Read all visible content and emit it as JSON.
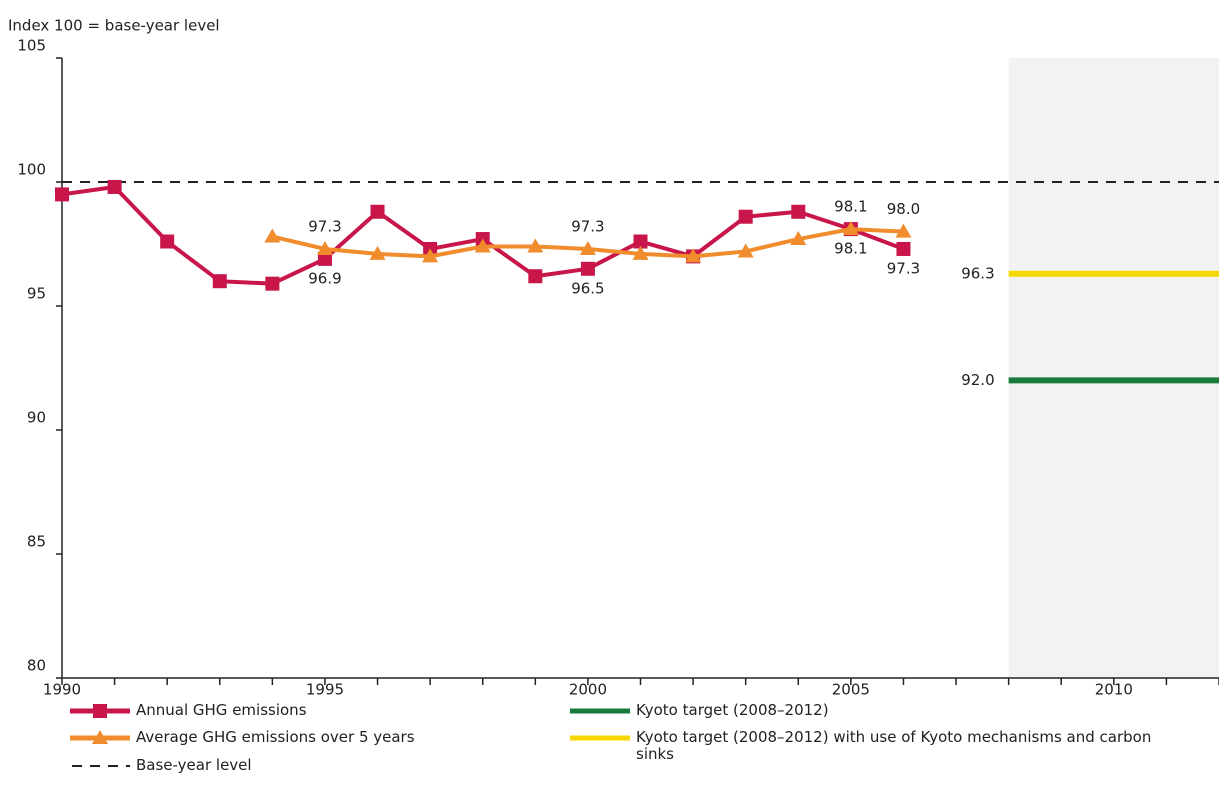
{
  "chart_data": {
    "type": "line",
    "y_label": "Index 100 = base-year level",
    "x": [
      1990,
      1991,
      1992,
      1993,
      1994,
      1995,
      1996,
      1997,
      1998,
      1999,
      2000,
      2001,
      2002,
      2003,
      2004,
      2005,
      2006
    ],
    "series": [
      {
        "name": "Annual GHG emissions",
        "color": "#c8164a",
        "marker": "square",
        "values": [
          99.5,
          99.8,
          97.6,
          96.0,
          95.9,
          96.9,
          98.8,
          97.3,
          97.7,
          96.2,
          96.5,
          97.6,
          97.0,
          98.6,
          98.8,
          98.1,
          97.3
        ],
        "value_labels": [
          null,
          null,
          null,
          null,
          null,
          "96.9",
          null,
          null,
          null,
          null,
          "96.5",
          null,
          null,
          null,
          null,
          "98.1",
          "97.3"
        ],
        "label_position": "below"
      },
      {
        "name": "Average GHG emissions over 5 years",
        "color": "#f08c2c",
        "marker": "triangle",
        "values": [
          null,
          null,
          null,
          null,
          97.8,
          97.3,
          97.1,
          97.0,
          97.4,
          97.4,
          97.3,
          97.1,
          97.0,
          97.2,
          97.7,
          98.1,
          98.0
        ],
        "value_labels": [
          null,
          null,
          null,
          null,
          null,
          "97.3",
          null,
          null,
          null,
          null,
          "97.3",
          null,
          null,
          null,
          null,
          "98.1",
          "98.0"
        ],
        "label_position": "above"
      }
    ],
    "reference_line": {
      "name": "Base-year level",
      "value": 100,
      "color": "#222222",
      "style": "dashed"
    },
    "targets": [
      {
        "name": "Kyoto target (2008–2012)",
        "value": 92.0,
        "value_label": "92.0",
        "xrange": [
          2008,
          2012
        ],
        "color": "#1a7a3c"
      },
      {
        "name": "Kyoto target (2008–2012) with use of Kyoto mechanisms and carbon sinks",
        "value": 96.3,
        "value_label": "96.3",
        "xrange": [
          2008,
          2012
        ],
        "color": "#f5d800"
      }
    ],
    "shade_xrange": [
      2008,
      2012
    ],
    "xlim": [
      1990,
      2012
    ],
    "ylim": [
      80,
      105
    ],
    "xticks": [
      1990,
      1995,
      2000,
      2005,
      2010
    ],
    "xticks_minor": [
      1991,
      1992,
      1993,
      1994,
      1996,
      1997,
      1998,
      1999,
      2001,
      2002,
      2003,
      2004,
      2006,
      2007,
      2008,
      2009,
      2011,
      2012
    ],
    "yticks": [
      80,
      85,
      90,
      95,
      100,
      105
    ]
  }
}
